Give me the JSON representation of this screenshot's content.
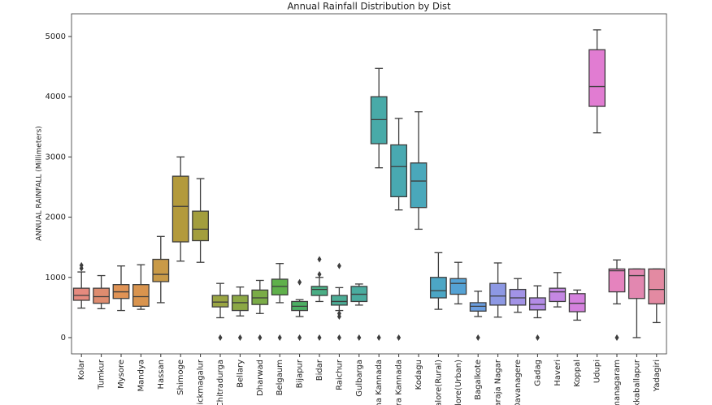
{
  "chart_data": {
    "type": "box",
    "title": "Annual Rainfall Distribution by Dist",
    "y_label": "ANNUAL RAINFALL (Millimeters)",
    "categories": [
      "Kolar",
      "Tumkur",
      "Mysore",
      "Mandya",
      "Hassan",
      "Shimoge",
      "hickmagalur",
      "Chitradurga",
      "Bellary",
      "Dharwad",
      "Belgaum",
      "Bijapur",
      "Bidar",
      "Raichur",
      "Gulbarga",
      "na Kannada",
      "ura Kannada",
      "Kodagu",
      "alore(Rural)",
      "lore(Urban)",
      "Bagalkote",
      "araja Nagar",
      "Davanagere",
      "Gadag",
      "Haveri",
      "Koppal",
      "Udupi",
      "hmanagaram",
      "kkaballapur",
      "Yadagiri"
    ],
    "colors": [
      "#e58a7e",
      "#de8c6f",
      "#e09355",
      "#d9944e",
      "#c99a47",
      "#b39a3c",
      "#a39e3d",
      "#9aa543",
      "#8ca845",
      "#7aac47",
      "#5fb04b",
      "#4caf63",
      "#4aae85",
      "#4cad96",
      "#4aac9f",
      "#48aaa8",
      "#49a9b1",
      "#4aa8bb",
      "#4ca6c5",
      "#55a2d4",
      "#6b9ee0",
      "#8d98e4",
      "#a293e6",
      "#b38ce6",
      "#c487e3",
      "#d581de",
      "#e17cd2",
      "#e583be",
      "#e287b0",
      "#e38aa2"
    ],
    "boxes": [
      {
        "low": 490,
        "q1": 620,
        "median": 700,
        "q3": 820,
        "high": 1090,
        "outliers": [
          1150,
          1200
        ]
      },
      {
        "low": 480,
        "q1": 570,
        "median": 680,
        "q3": 820,
        "high": 1030,
        "outliers": []
      },
      {
        "low": 450,
        "q1": 650,
        "median": 760,
        "q3": 880,
        "high": 1190,
        "outliers": []
      },
      {
        "low": 470,
        "q1": 520,
        "median": 680,
        "q3": 880,
        "high": 1210,
        "outliers": []
      },
      {
        "low": 580,
        "q1": 930,
        "median": 1050,
        "q3": 1300,
        "high": 1680,
        "outliers": []
      },
      {
        "low": 1270,
        "q1": 1590,
        "median": 2180,
        "q3": 2680,
        "high": 3000,
        "outliers": []
      },
      {
        "low": 1250,
        "q1": 1610,
        "median": 1800,
        "q3": 2100,
        "high": 2640,
        "outliers": []
      },
      {
        "low": 330,
        "q1": 510,
        "median": 590,
        "q3": 700,
        "high": 900,
        "outliers": [
          0
        ]
      },
      {
        "low": 360,
        "q1": 450,
        "median": 580,
        "q3": 700,
        "high": 840,
        "outliers": [
          0
        ]
      },
      {
        "low": 400,
        "q1": 550,
        "median": 660,
        "q3": 790,
        "high": 950,
        "outliers": [
          0
        ]
      },
      {
        "low": 580,
        "q1": 710,
        "median": 850,
        "q3": 970,
        "high": 1230,
        "outliers": [
          0
        ]
      },
      {
        "low": 350,
        "q1": 450,
        "median": 520,
        "q3": 600,
        "high": 630,
        "outliers": [
          920,
          0
        ]
      },
      {
        "low": 600,
        "q1": 700,
        "median": 800,
        "q3": 850,
        "high": 1000,
        "outliers": [
          1300,
          1050,
          0
        ]
      },
      {
        "low": 450,
        "q1": 540,
        "median": 600,
        "q3": 700,
        "high": 830,
        "outliers": [
          1190,
          400,
          350,
          0
        ]
      },
      {
        "low": 540,
        "q1": 600,
        "median": 720,
        "q3": 850,
        "high": 890,
        "outliers": [
          0
        ]
      },
      {
        "low": 2820,
        "q1": 3220,
        "median": 3620,
        "q3": 4000,
        "high": 4470,
        "outliers": [
          0
        ]
      },
      {
        "low": 2120,
        "q1": 2340,
        "median": 2840,
        "q3": 3200,
        "high": 3640,
        "outliers": [
          0
        ]
      },
      {
        "low": 1800,
        "q1": 2160,
        "median": 2600,
        "q3": 2900,
        "high": 3750,
        "outliers": []
      },
      {
        "low": 470,
        "q1": 660,
        "median": 780,
        "q3": 1000,
        "high": 1410,
        "outliers": []
      },
      {
        "low": 560,
        "q1": 720,
        "median": 900,
        "q3": 980,
        "high": 1250,
        "outliers": []
      },
      {
        "low": 350,
        "q1": 440,
        "median": 520,
        "q3": 580,
        "high": 770,
        "outliers": [
          0
        ]
      },
      {
        "low": 340,
        "q1": 540,
        "median": 690,
        "q3": 900,
        "high": 1240,
        "outliers": []
      },
      {
        "low": 420,
        "q1": 540,
        "median": 660,
        "q3": 800,
        "high": 980,
        "outliers": []
      },
      {
        "low": 330,
        "q1": 460,
        "median": 550,
        "q3": 660,
        "high": 860,
        "outliers": [
          0
        ]
      },
      {
        "low": 510,
        "q1": 600,
        "median": 760,
        "q3": 820,
        "high": 1080,
        "outliers": []
      },
      {
        "low": 290,
        "q1": 430,
        "median": 570,
        "q3": 730,
        "high": 790,
        "outliers": []
      },
      {
        "low": 3400,
        "q1": 3840,
        "median": 4170,
        "q3": 4780,
        "high": 5110,
        "outliers": []
      },
      {
        "low": 560,
        "q1": 760,
        "median": 1110,
        "q3": 1140,
        "high": 1290,
        "outliers": [
          0
        ]
      },
      {
        "low": 0,
        "q1": 650,
        "median": 1030,
        "q3": 1140,
        "high": 1140,
        "outliers": []
      },
      {
        "low": 250,
        "q1": 560,
        "median": 800,
        "q3": 1140,
        "high": 1140,
        "outliers": []
      }
    ],
    "ylim": [
      -270,
      5377
    ],
    "yticks": [
      0,
      1000,
      2000,
      3000,
      4000,
      5000
    ],
    "grid": false
  }
}
